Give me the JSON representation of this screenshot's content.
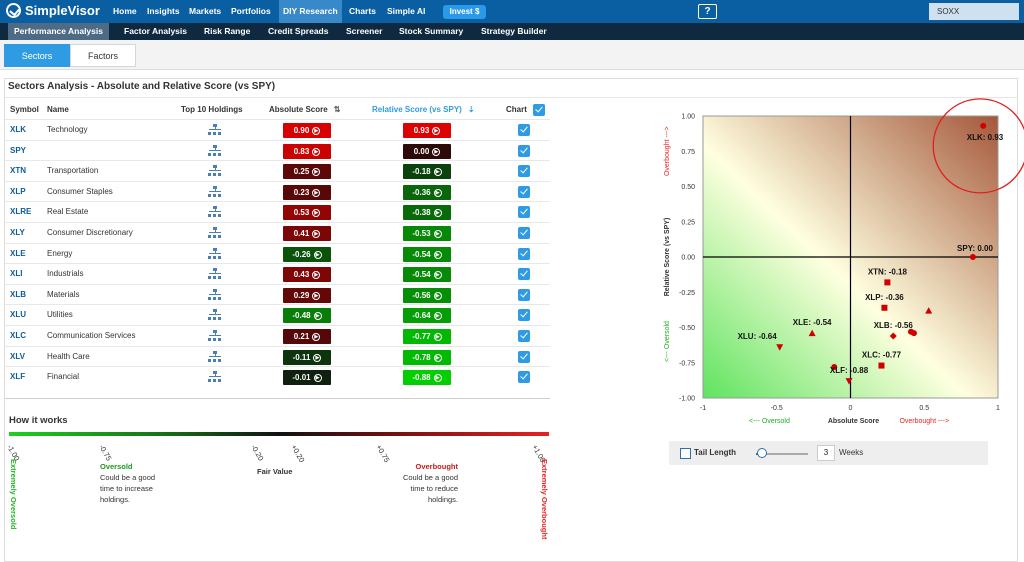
{
  "brand": "SimpleVisor",
  "nav": [
    "Home",
    "Insights",
    "Markets",
    "Portfolios",
    "DIY Research",
    "Charts",
    "Simple AI"
  ],
  "invest_label": "Invest $",
  "search_value": "SOXX",
  "subnav": [
    "Performance Analysis",
    "Factor Analysis",
    "Risk Range",
    "Credit Spreads",
    "Screener",
    "Stock Summary",
    "Strategy Builder"
  ],
  "tabs": [
    "Sectors",
    "Factors"
  ],
  "panel_title": "Sectors Analysis - Absolute and Relative Score (vs SPY)",
  "headers": {
    "symbol": "Symbol",
    "name": "Name",
    "holdings": "Top 10 Holdings",
    "absolute": "Absolute Score",
    "relative": "Relative Score (vs SPY)",
    "chart": "Chart"
  },
  "rows": [
    {
      "symbol": "XLK",
      "name": "Technology",
      "abs": "0.90",
      "rel": "0.93"
    },
    {
      "symbol": "SPY",
      "name": "",
      "abs": "0.83",
      "rel": "0.00"
    },
    {
      "symbol": "XTN",
      "name": "Transportation",
      "abs": "0.25",
      "rel": "-0.18"
    },
    {
      "symbol": "XLP",
      "name": "Consumer Staples",
      "abs": "0.23",
      "rel": "-0.36"
    },
    {
      "symbol": "XLRE",
      "name": "Real Estate",
      "abs": "0.53",
      "rel": "-0.38"
    },
    {
      "symbol": "XLY",
      "name": "Consumer Discretionary",
      "abs": "0.41",
      "rel": "-0.53"
    },
    {
      "symbol": "XLE",
      "name": "Energy",
      "abs": "-0.26",
      "rel": "-0.54"
    },
    {
      "symbol": "XLI",
      "name": "Industrials",
      "abs": "0.43",
      "rel": "-0.54"
    },
    {
      "symbol": "XLB",
      "name": "Materials",
      "abs": "0.29",
      "rel": "-0.56"
    },
    {
      "symbol": "XLU",
      "name": "Utilities",
      "abs": "-0.48",
      "rel": "-0.64"
    },
    {
      "symbol": "XLC",
      "name": "Communication Services",
      "abs": "0.21",
      "rel": "-0.77"
    },
    {
      "symbol": "XLV",
      "name": "Health Care",
      "abs": "-0.11",
      "rel": "-0.78"
    },
    {
      "symbol": "XLF",
      "name": "Financial",
      "abs": "-0.01",
      "rel": "-0.88"
    }
  ],
  "how": {
    "title": "How it works",
    "ticks": [
      "-1.00",
      "-0.75",
      "-0.20",
      "+0.20",
      "+0.75",
      "+1.00"
    ],
    "ext_oversold": "Extremely Oversold",
    "ext_overbought": "Extremely Overbought",
    "oversold_title": "Oversold",
    "oversold_text": [
      "Could be a good",
      "time to increase",
      "holdings."
    ],
    "fair_value": "Fair Value",
    "overbought_title": "Overbought",
    "overbought_text": [
      "Could be a good",
      "time to reduce",
      "holdings."
    ]
  },
  "colors": {
    "nav": "#0a5fa3",
    "subnav": "#0f2a40",
    "accent": "#2f9be3",
    "overbought": "#e82222",
    "oversold": "#1fd11f"
  },
  "chart_data": {
    "type": "scatter",
    "xlabel": "Absolute Score",
    "ylabel": "Relative Score (vs SPY)",
    "x_ticks": [
      "-1",
      "-0.5",
      "0",
      "0.5",
      "1"
    ],
    "y_ticks": [
      "1.00",
      "0.75",
      "0.50",
      "0.25",
      "0.00",
      "-0.25",
      "-0.50",
      "-0.75",
      "-1.00"
    ],
    "xlim": [
      -1,
      1
    ],
    "ylim": [
      -1,
      1
    ],
    "x_oversold": "<--- Oversold",
    "x_overbought": "Overbought --->",
    "y_oversold": "<--- Oversold",
    "y_overbought": "Overbought --->",
    "points": [
      {
        "label": "XLK: 0.93",
        "x": 0.9,
        "y": 0.93,
        "shape": "circle"
      },
      {
        "label": "SPY: 0.00",
        "x": 0.83,
        "y": 0.0,
        "shape": "circle"
      },
      {
        "label": "XTN: -0.18",
        "x": 0.25,
        "y": -0.18,
        "shape": "square"
      },
      {
        "label": "XLP: -0.36",
        "x": 0.23,
        "y": -0.36,
        "shape": "square"
      },
      {
        "label": "",
        "x": 0.53,
        "y": -0.38,
        "shape": "triangle-up"
      },
      {
        "label": "",
        "x": 0.41,
        "y": -0.53,
        "shape": "circle"
      },
      {
        "label": "XLE: -0.54",
        "x": -0.26,
        "y": -0.54,
        "shape": "triangle-up"
      },
      {
        "label": "",
        "x": 0.43,
        "y": -0.54,
        "shape": "circle"
      },
      {
        "label": "XLB: -0.56",
        "x": 0.29,
        "y": -0.56,
        "shape": "diamond"
      },
      {
        "label": "XLU: -0.64",
        "x": -0.48,
        "y": -0.64,
        "shape": "triangle-down"
      },
      {
        "label": "XLC: -0.77",
        "x": 0.21,
        "y": -0.77,
        "shape": "square"
      },
      {
        "label": "",
        "x": -0.11,
        "y": -0.78,
        "shape": "circle"
      },
      {
        "label": "XLF: -0.88",
        "x": -0.01,
        "y": -0.88,
        "shape": "triangle-down"
      }
    ]
  },
  "tail": {
    "label": "Tail Length",
    "weeks_value": "3",
    "weeks_label": "Weeks"
  }
}
